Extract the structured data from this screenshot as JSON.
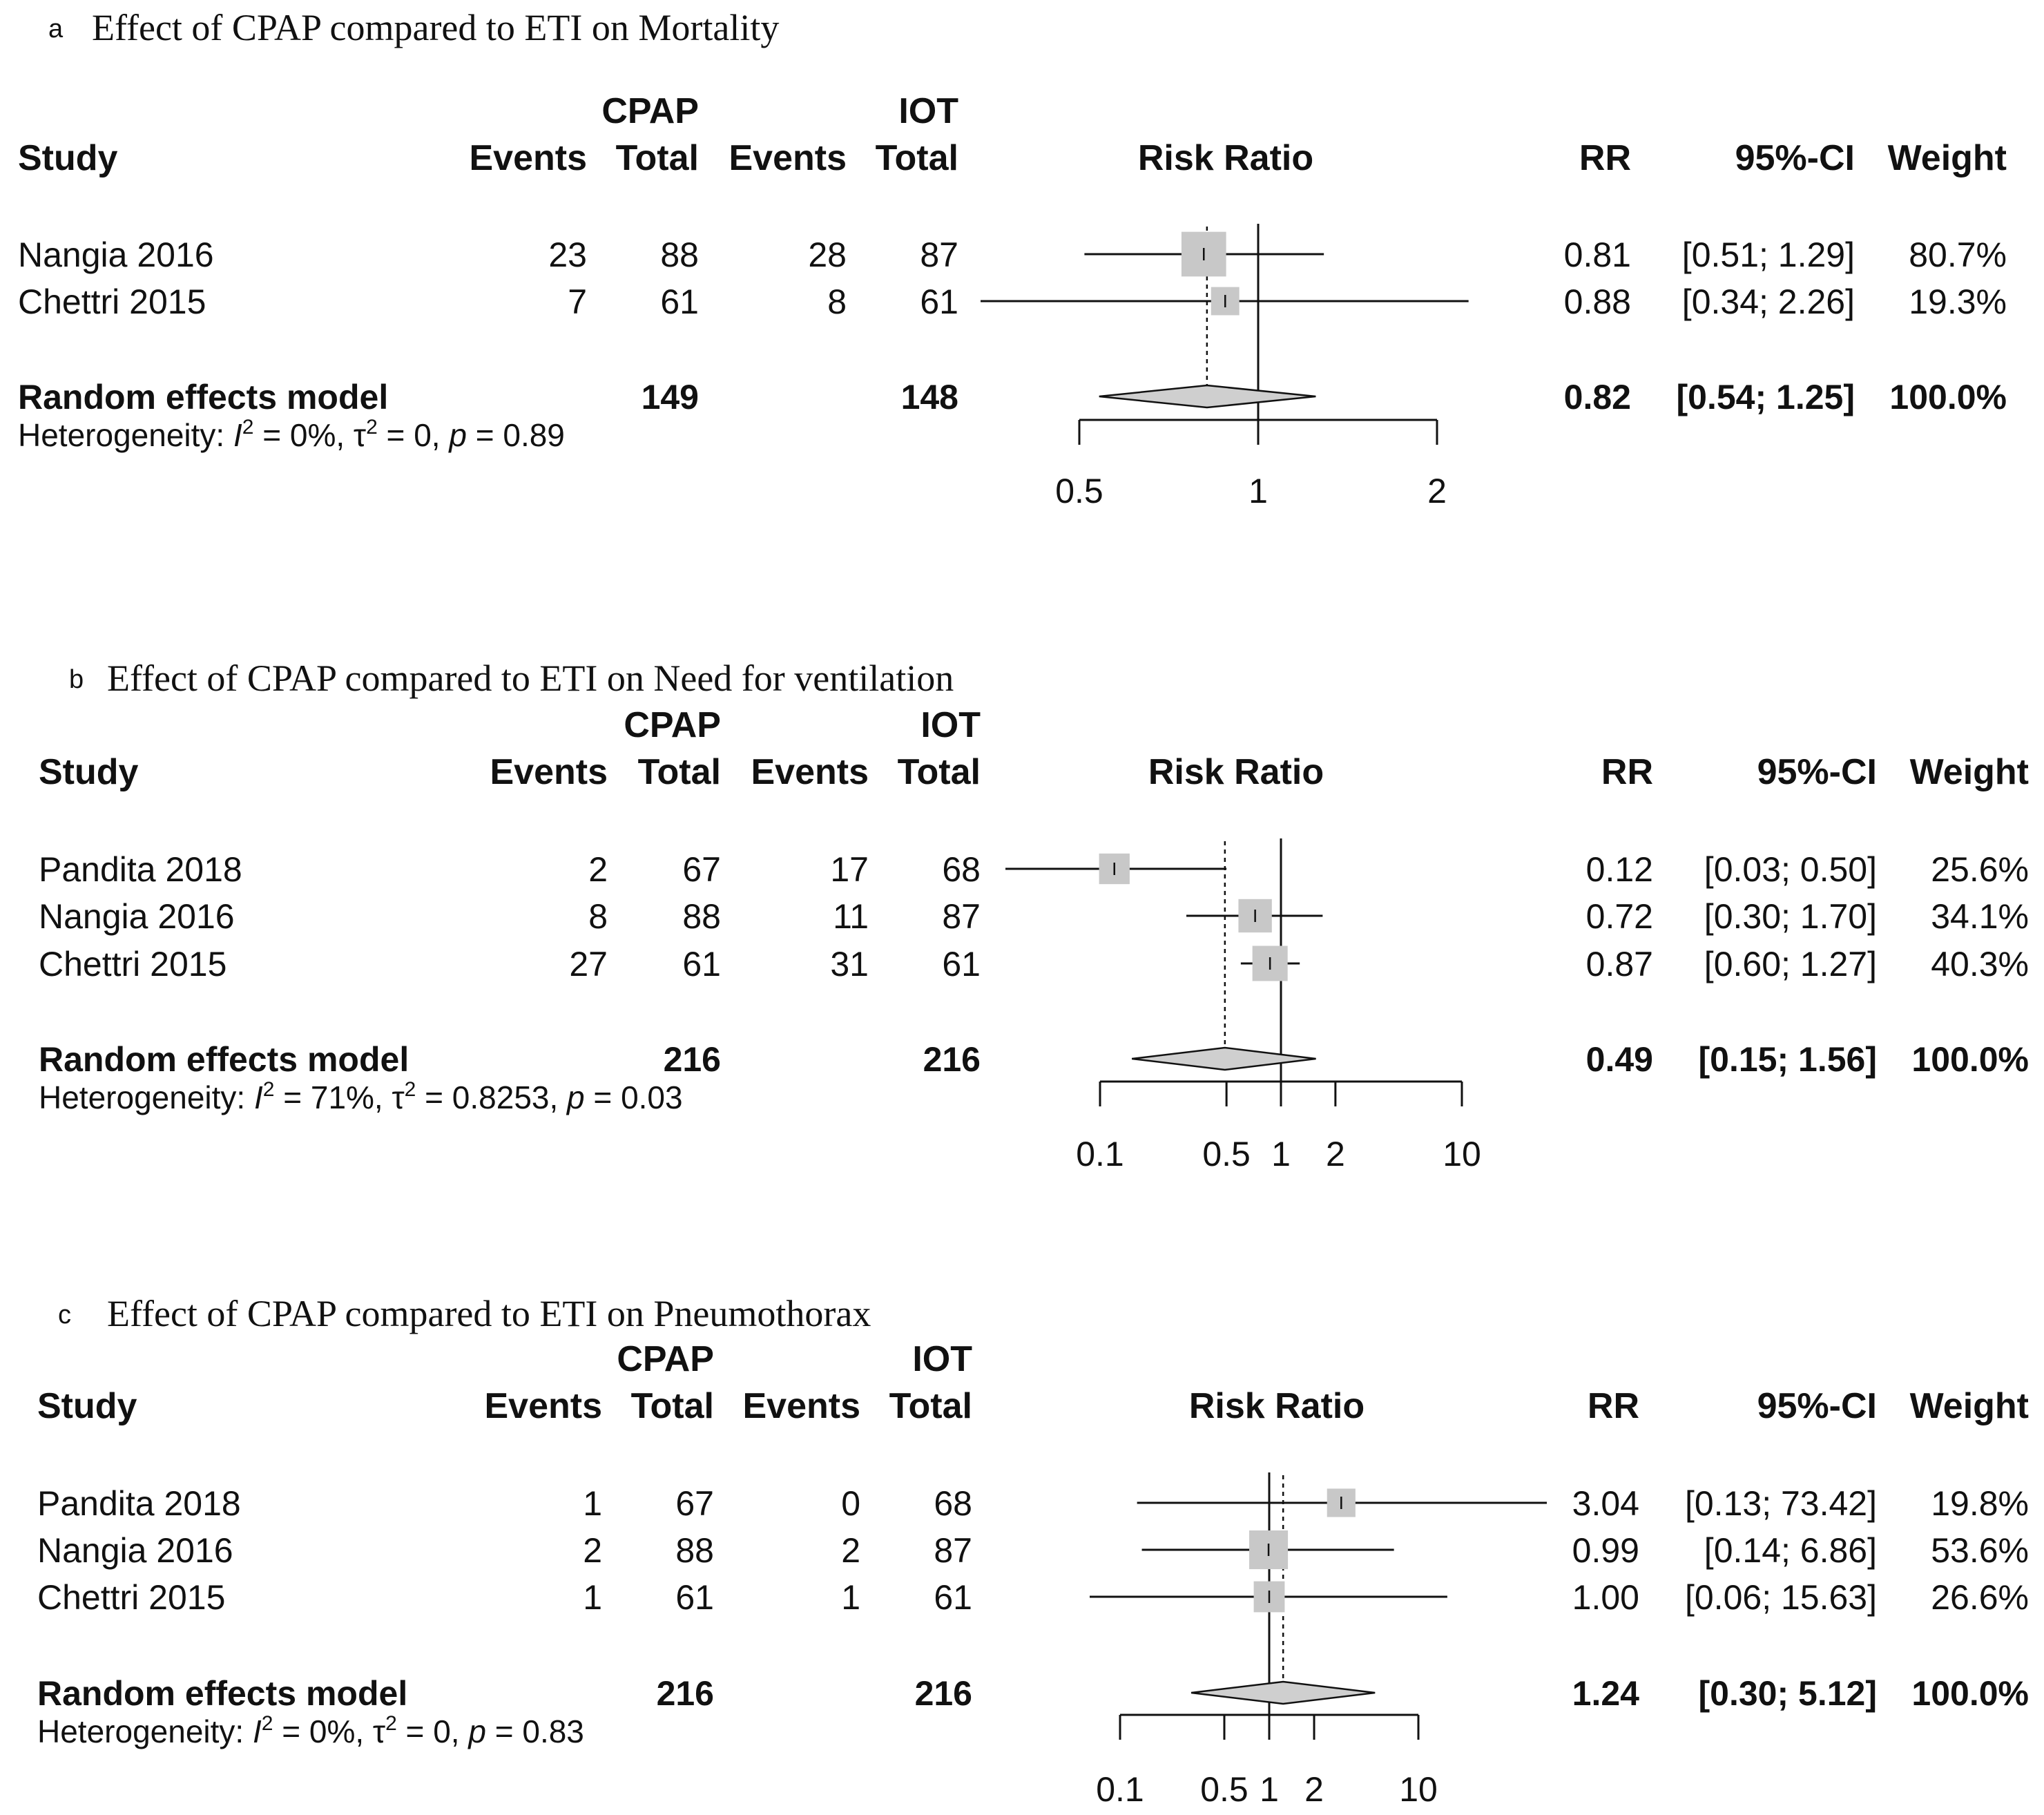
{
  "colors": {
    "ink": "#111111",
    "square": "#c8c8c8",
    "diamond": "#cfcfcf"
  },
  "headers": {
    "study": "Study",
    "cpap": "CPAP",
    "iot": "IOT",
    "events": "Events",
    "total": "Total",
    "risk_ratio": "Risk Ratio",
    "rr": "RR",
    "ci": "95%-CI",
    "weight": "Weight"
  },
  "chart_data": [
    {
      "type": "forest",
      "letter": "a",
      "title": "Effect of CPAP compared to ETI on Mortality",
      "scale": "log",
      "ticks": [
        0.5,
        1,
        2
      ],
      "tick_labels": [
        "0.5",
        "1",
        "2"
      ],
      "xlim": [
        0.5,
        2
      ],
      "studies": [
        {
          "name": "Nangia 2016",
          "e1": "23",
          "n1": "88",
          "e2": "28",
          "n2": "87",
          "rr": 0.81,
          "lo": 0.51,
          "hi": 1.29,
          "weight": 80.7,
          "rr_text": "0.81",
          "ci_text": "[0.51; 1.29]",
          "weight_text": "80.7%"
        },
        {
          "name": "Chettri 2015",
          "e1": "7",
          "n1": "61",
          "e2": "8",
          "n2": "61",
          "rr": 0.88,
          "lo": 0.34,
          "hi": 2.26,
          "weight": 19.3,
          "rr_text": "0.88",
          "ci_text": "[0.34; 2.26]",
          "weight_text": "19.3%"
        }
      ],
      "pooled": {
        "label": "Random effects model",
        "n1": "149",
        "n2": "148",
        "rr": 0.82,
        "lo": 0.54,
        "hi": 1.25,
        "rr_text": "0.82",
        "ci_text": "[0.54; 1.25]",
        "weight_text": "100.0%"
      },
      "heterogeneity": {
        "prefix": "Heterogeneity: ",
        "i2_sym": "I",
        "i2_val": " = 0%, ",
        "tau_sym": "τ",
        "tau_val": " = 0, ",
        "p_sym": "p",
        "p_val": " = 0.89"
      }
    },
    {
      "type": "forest",
      "letter": "b",
      "title": "Effect of CPAP compared to ETI on Need for ventilation",
      "scale": "log",
      "ticks": [
        0.1,
        0.5,
        1,
        2,
        10
      ],
      "tick_labels": [
        "0.1",
        "0.5",
        "1",
        "2",
        "10"
      ],
      "xlim": [
        0.1,
        10
      ],
      "studies": [
        {
          "name": "Pandita 2018",
          "e1": "2",
          "n1": "67",
          "e2": "17",
          "n2": "68",
          "rr": 0.12,
          "lo": 0.03,
          "hi": 0.5,
          "weight": 25.6,
          "rr_text": "0.12",
          "ci_text": "[0.03; 0.50]",
          "weight_text": "25.6%"
        },
        {
          "name": "Nangia 2016",
          "e1": "8",
          "n1": "88",
          "e2": "11",
          "n2": "87",
          "rr": 0.72,
          "lo": 0.3,
          "hi": 1.7,
          "weight": 34.1,
          "rr_text": "0.72",
          "ci_text": "[0.30; 1.70]",
          "weight_text": "34.1%"
        },
        {
          "name": "Chettri 2015",
          "e1": "27",
          "n1": "61",
          "e2": "31",
          "n2": "61",
          "rr": 0.87,
          "lo": 0.6,
          "hi": 1.27,
          "weight": 40.3,
          "rr_text": "0.87",
          "ci_text": "[0.60; 1.27]",
          "weight_text": "40.3%"
        }
      ],
      "pooled": {
        "label": "Random effects model",
        "n1": "216",
        "n2": "216",
        "rr": 0.49,
        "lo": 0.15,
        "hi": 1.56,
        "rr_text": "0.49",
        "ci_text": "[0.15; 1.56]",
        "weight_text": "100.0%"
      },
      "heterogeneity": {
        "prefix": "Heterogeneity: ",
        "i2_sym": "I",
        "i2_val": " = 71%, ",
        "tau_sym": "τ",
        "tau_val": " = 0.8253, ",
        "p_sym": "p",
        "p_val": " = 0.03"
      }
    },
    {
      "type": "forest",
      "letter": "c",
      "title": "Effect of CPAP compared to ETI on Pneumothorax",
      "scale": "log",
      "ticks": [
        0.1,
        0.5,
        1,
        2,
        10
      ],
      "tick_labels": [
        "0.1",
        "0.5",
        "1",
        "2",
        "10"
      ],
      "xlim": [
        0.1,
        10
      ],
      "studies": [
        {
          "name": "Pandita 2018",
          "e1": "1",
          "n1": "67",
          "e2": "0",
          "n2": "68",
          "rr": 3.04,
          "lo": 0.13,
          "hi": 73.42,
          "weight": 19.8,
          "rr_text": "3.04",
          "ci_text": "[0.13; 73.42]",
          "weight_text": "19.8%"
        },
        {
          "name": "Nangia 2016",
          "e1": "2",
          "n1": "88",
          "e2": "2",
          "n2": "87",
          "rr": 0.99,
          "lo": 0.14,
          "hi": 6.86,
          "weight": 53.6,
          "rr_text": "0.99",
          "ci_text": "[0.14; 6.86]",
          "weight_text": "53.6%"
        },
        {
          "name": "Chettri 2015",
          "e1": "1",
          "n1": "61",
          "e2": "1",
          "n2": "61",
          "rr": 1.0,
          "lo": 0.06,
          "hi": 15.63,
          "weight": 26.6,
          "rr_text": "1.00",
          "ci_text": "[0.06; 15.63]",
          "weight_text": "26.6%"
        }
      ],
      "pooled": {
        "label": "Random effects model",
        "n1": "216",
        "n2": "216",
        "rr": 1.24,
        "lo": 0.3,
        "hi": 5.12,
        "rr_text": "1.24",
        "ci_text": "[0.30; 5.12]",
        "weight_text": "100.0%"
      },
      "heterogeneity": {
        "prefix": "Heterogeneity: ",
        "i2_sym": "I",
        "i2_val": " = 0%, ",
        "tau_sym": "τ",
        "tau_val": " = 0, ",
        "p_sym": "p",
        "p_val": " = 0.83"
      }
    }
  ]
}
